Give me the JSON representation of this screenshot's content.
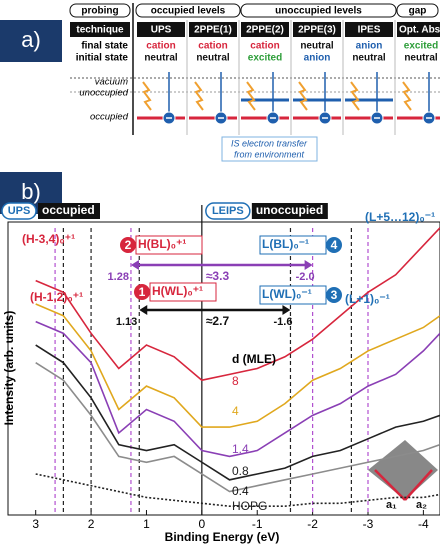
{
  "panel_a": {
    "label": "a)",
    "header": [
      "probing",
      "occupied levels",
      "unoccupied levels",
      "gap"
    ],
    "row_labels": {
      "technique": "technique",
      "final_state": "final state",
      "initial_state": "initial state",
      "vacuum": "vacuum",
      "unoccupied": "unoccupied",
      "occupied": "occupied"
    },
    "columns": [
      {
        "technique": "UPS",
        "final": "cation",
        "final_color": "#d7263d",
        "initial": "neutral",
        "initial_color": "#111111"
      },
      {
        "technique": "2PPE(1)",
        "final": "cation",
        "final_color": "#d7263d",
        "initial": "neutral",
        "initial_color": "#111111"
      },
      {
        "technique": "2PPE(2)",
        "final": "cation",
        "final_color": "#d7263d",
        "initial": "excited",
        "initial_color": "#2e9e3a"
      },
      {
        "technique": "2PPE(3)",
        "final": "neutral",
        "final_color": "#111111",
        "initial": "anion",
        "initial_color": "#1f5fae"
      },
      {
        "technique": "IPES",
        "final": "anion",
        "final_color": "#1f5fae",
        "initial": "neutral",
        "initial_color": "#111111"
      },
      {
        "technique": "Opt. Abs.",
        "final": "excited",
        "final_color": "#2e9e3a",
        "initial": "neutral",
        "initial_color": "#111111"
      }
    ],
    "note": [
      "IS electron transfer",
      "from environment"
    ]
  },
  "chart_data": {
    "type": "line",
    "panel_label": "b)",
    "xlabel": "Binding Energy (eV)",
    "ylabel": "Intensity (arb. units)",
    "regions": [
      {
        "tag": "UPS",
        "text": "occupied"
      },
      {
        "tag": "LEIPS",
        "text": "unoccupied"
      }
    ],
    "legend_title": "d (MLE)",
    "xlim": [
      3.5,
      -4.3
    ],
    "ylim": [
      0,
      100
    ],
    "xticks": [
      3,
      2,
      1,
      0,
      -1,
      -2,
      -3,
      -4
    ],
    "x": [
      3,
      2.5,
      2,
      1.5,
      1,
      0.5,
      0,
      -0.5,
      -1,
      -1.5,
      -2,
      -2.5,
      -3,
      -3.5,
      -4,
      -4.3
    ],
    "series": [
      {
        "name": "8",
        "color": "#d7263d",
        "values": [
          80,
          76,
          62,
          50,
          58,
          54,
          46,
          48,
          50,
          54,
          60,
          68,
          76,
          82,
          92,
          98
        ]
      },
      {
        "name": "4",
        "color": "#e0a81e",
        "values": [
          72,
          68,
          56,
          36,
          44,
          40,
          30,
          30,
          32,
          38,
          46,
          50,
          56,
          60,
          64,
          68
        ]
      },
      {
        "name": "1.4",
        "color": "#8a3fb5",
        "values": [
          66,
          62,
          52,
          28,
          36,
          32,
          22,
          20,
          22,
          28,
          34,
          38,
          44,
          48,
          56,
          62
        ]
      },
      {
        "name": "0.8",
        "color": "#222222",
        "values": [
          58,
          52,
          40,
          24,
          22,
          24,
          18,
          12,
          14,
          16,
          20,
          22,
          26,
          30,
          32,
          34
        ]
      },
      {
        "name": "0.4",
        "color": "#8c8c8c",
        "values": [
          52,
          46,
          34,
          20,
          18,
          20,
          14,
          8,
          10,
          12,
          14,
          16,
          18,
          20,
          22,
          24
        ]
      },
      {
        "name": "HOPG",
        "color": "#222222",
        "dotted": true,
        "values": [
          14,
          12,
          10,
          8,
          6,
          5,
          4,
          3,
          3,
          3,
          4,
          4,
          5,
          6,
          6,
          7
        ]
      }
    ],
    "guides": [
      {
        "x": 2.65,
        "color": "#b24fd0"
      },
      {
        "x": 2.5,
        "color": "#222222"
      },
      {
        "x": 2.0,
        "color": "#222222"
      },
      {
        "x": 1.28,
        "color": "#b24fd0"
      },
      {
        "x": 1.13,
        "color": "#222222"
      },
      {
        "x": -1.6,
        "color": "#222222"
      },
      {
        "x": -2.0,
        "color": "#b24fd0"
      },
      {
        "x": -2.7,
        "color": "#222222"
      },
      {
        "x": -3.0,
        "color": "#b24fd0"
      }
    ],
    "peaks": [
      {
        "text": "(H-3,4)₀⁺¹",
        "color": "#d7263d"
      },
      {
        "text": "(H-1,2)₀⁺¹",
        "color": "#d7263d"
      },
      {
        "text": "H(BL)₀⁺¹",
        "badge": "2",
        "color": "#d7263d"
      },
      {
        "text": "H(WL)₀⁺¹",
        "badge": "1",
        "color": "#d7263d"
      },
      {
        "text": "L(BL)₀⁻¹",
        "badge": "4",
        "color": "#1f6fb5"
      },
      {
        "text": "L(WL)₀⁻¹",
        "badge": "3",
        "color": "#1f6fb5"
      },
      {
        "text": "(L+1)₀⁻¹",
        "color": "#1f6fb5"
      },
      {
        "text": "(L+5…12)₀⁻¹",
        "color": "#1f6fb5"
      }
    ],
    "gaps": [
      {
        "from": "1.28",
        "gap": "≈3.3",
        "to": "-2.0",
        "color": "#8a3fb5"
      },
      {
        "from": "1.13",
        "gap": "≈2.7",
        "to": "-1.6",
        "color": "#111111"
      }
    ],
    "lattice": [
      "a₁",
      "a₂"
    ]
  }
}
